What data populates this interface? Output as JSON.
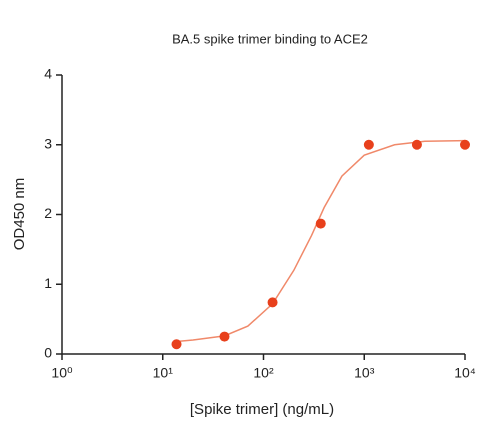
{
  "chart_data": {
    "type": "scatter",
    "title": "BA.5 spike trimer binding to ACE2",
    "x_label": "[Spike trimer]  (ng/mL)",
    "y_label": "OD450 nm",
    "x": [
      13.7,
      41,
      123,
      370,
      1111,
      3333,
      10000
    ],
    "values": [
      0.14,
      0.25,
      0.74,
      1.87,
      3.0,
      3.0,
      3.0
    ],
    "color": "#e8401c",
    "fit_line": {
      "color": "#f0896a",
      "x": [
        13.7,
        20,
        41,
        70,
        123,
        200,
        300,
        400,
        600,
        1000,
        2000,
        4000,
        10000
      ],
      "values": [
        0.18,
        0.2,
        0.26,
        0.4,
        0.72,
        1.2,
        1.7,
        2.1,
        2.55,
        2.85,
        3.0,
        3.05,
        3.06
      ]
    },
    "x_log": true,
    "xlim": [
      1,
      10000
    ],
    "xticks": [
      {
        "value": 1,
        "label": "10⁰"
      },
      {
        "value": 10,
        "label": "10¹"
      },
      {
        "value": 100,
        "label": "10²"
      },
      {
        "value": 1000,
        "label": "10³"
      },
      {
        "value": 10000,
        "label": "10⁴"
      }
    ],
    "ylim": [
      0,
      4
    ],
    "yticks": [
      0,
      1,
      2,
      3,
      4
    ]
  }
}
